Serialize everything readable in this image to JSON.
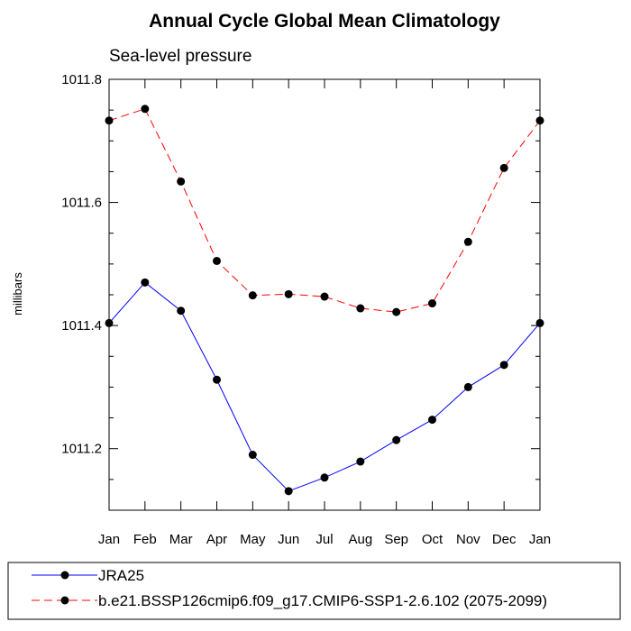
{
  "chart_data": {
    "type": "line",
    "title": "Annual Cycle Global Mean Climatology",
    "subtitle": "Sea-level pressure",
    "xlabel": "",
    "ylabel": "millibars",
    "categories": [
      "Jan",
      "Feb",
      "Mar",
      "Apr",
      "May",
      "Jun",
      "Jul",
      "Aug",
      "Sep",
      "Oct",
      "Nov",
      "Dec",
      "Jan"
    ],
    "ylim": [
      1011.1,
      1011.8
    ],
    "yticks": [
      1011.2,
      1011.4,
      1011.6,
      1011.8
    ],
    "ytick_labels": [
      "1011.2",
      "1011.4",
      "1011.6",
      "1011.8"
    ],
    "grid": false,
    "legend_position": "bottom",
    "series": [
      {
        "name": "JRA25",
        "color": "#0000ff",
        "dash": false,
        "marker": "circle",
        "values": [
          1011.404,
          1011.47,
          1011.424,
          1011.312,
          1011.19,
          1011.131,
          1011.153,
          1011.179,
          1011.214,
          1011.247,
          1011.3,
          1011.336,
          1011.404
        ]
      },
      {
        "name": "b.e21.BSSP126cmip6.f09_g17.CMIP6-SSP1-2.6.102 (2075-2099)",
        "color": "#ff0000",
        "dash": true,
        "marker": "circle",
        "values": [
          1011.733,
          1011.752,
          1011.634,
          1011.505,
          1011.449,
          1011.451,
          1011.447,
          1011.428,
          1011.422,
          1011.436,
          1011.536,
          1011.656,
          1011.733
        ]
      }
    ]
  }
}
